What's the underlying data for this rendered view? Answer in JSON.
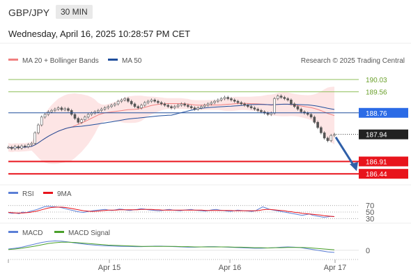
{
  "header": {
    "symbol": "GBP/JPY",
    "timeframe": "30 MIN",
    "datetime": "Wednesday, April 16, 2025 10:28:57 PM CET"
  },
  "legend": {
    "ma20": "MA 20 + Bollinger Bands",
    "ma50": "MA 50",
    "rsi": "RSI",
    "rsi_ma": "9MA",
    "macd": "MACD",
    "macd_signal": "MACD Signal",
    "credit": "Research © 2025 Trading Central"
  },
  "colors": {
    "ma20": "#f08080",
    "ma50": "#1f4e9c",
    "bollinger_fill": "#fde2e2",
    "resistance": "#8fbf5a",
    "resistance_text": "#6aa02b",
    "pivot": "#1f4e9c",
    "pivot_label": "#2b6be6",
    "support": "#e8141c",
    "price_label": "#222222",
    "arrow": "#2f5fa8",
    "rsi": "#5b7fd6",
    "rsi_ma": "#e8141c",
    "macd": "#5b7fd6",
    "macd_signal": "#4aa02b"
  },
  "chart_data": [
    {
      "type": "candlestick",
      "panel": "price",
      "ylim": [
        186.1,
        190.4
      ],
      "x_axis_labels": [
        "Apr 15",
        "Apr 16",
        "Apr 17"
      ],
      "levels": [
        {
          "name": "resistance-2",
          "value": 190.03,
          "label": "190.03",
          "style": "resistance"
        },
        {
          "name": "resistance-1",
          "value": 189.56,
          "label": "189.56",
          "style": "resistance"
        },
        {
          "name": "pivot",
          "value": 188.76,
          "label": "188.76",
          "style": "pivot"
        },
        {
          "name": "last-price",
          "value": 187.94,
          "label": "187.94",
          "style": "price"
        },
        {
          "name": "support-1",
          "value": 186.91,
          "label": "186.91",
          "style": "support"
        },
        {
          "name": "support-2",
          "value": 186.44,
          "label": "186.44",
          "style": "support"
        }
      ],
      "close": [
        187.45,
        187.4,
        187.48,
        187.42,
        187.5,
        187.47,
        187.55,
        187.6,
        188.0,
        188.3,
        188.6,
        188.7,
        188.8,
        188.85,
        188.9,
        188.95,
        188.88,
        188.92,
        188.85,
        188.7,
        188.55,
        188.4,
        188.5,
        188.6,
        188.7,
        188.75,
        188.8,
        188.85,
        188.9,
        188.95,
        189.0,
        189.05,
        189.1,
        189.2,
        189.25,
        189.3,
        189.2,
        189.1,
        189.0,
        188.95,
        189.05,
        189.15,
        189.2,
        189.25,
        189.2,
        189.15,
        189.1,
        189.05,
        189.0,
        188.95,
        189.0,
        189.05,
        189.1,
        189.05,
        189.0,
        188.95,
        188.9,
        188.95,
        189.0,
        189.05,
        189.1,
        189.15,
        189.2,
        189.25,
        189.3,
        189.35,
        189.3,
        189.25,
        189.2,
        189.15,
        189.1,
        189.05,
        189.0,
        188.95,
        188.9,
        188.85,
        188.8,
        188.75,
        188.7,
        188.75,
        189.3,
        189.4,
        189.35,
        189.3,
        189.25,
        189.1,
        189.0,
        188.9,
        188.8,
        188.75,
        188.7,
        188.6,
        188.4,
        188.2,
        188.0,
        187.8,
        187.7,
        187.9,
        187.94
      ]
    },
    {
      "type": "line",
      "panel": "rsi",
      "ylim": [
        20,
        80
      ],
      "ticks": [
        70,
        50,
        30
      ],
      "series": [
        {
          "name": "RSI",
          "values": [
            48,
            46,
            47,
            45,
            50,
            48,
            52,
            55,
            58,
            62,
            66,
            68,
            67,
            66,
            65,
            63,
            60,
            57,
            55,
            52,
            50,
            49,
            51,
            53,
            55,
            56,
            57,
            58,
            56,
            55,
            57,
            59,
            58,
            56,
            55,
            57,
            58,
            60,
            59,
            57,
            56,
            55,
            54,
            55,
            57,
            58,
            56,
            55,
            54,
            56,
            57,
            58,
            56,
            55,
            54,
            53,
            55,
            57,
            58,
            56,
            55,
            53,
            52,
            54,
            56,
            55,
            54,
            53,
            52,
            54,
            60,
            66,
            62,
            58,
            56,
            54,
            52,
            50,
            48,
            46,
            44,
            42,
            40,
            42,
            44,
            40,
            38,
            36,
            34,
            35,
            37,
            36
          ]
        },
        {
          "name": "9MA",
          "values": [
            49,
            48,
            47,
            47,
            47,
            48,
            49,
            51,
            53,
            56,
            59,
            62,
            64,
            65,
            65,
            65,
            64,
            62,
            60,
            58,
            56,
            54,
            53,
            52,
            52,
            53,
            54,
            55,
            56,
            56,
            56,
            57,
            57,
            57,
            57,
            57,
            57,
            58,
            58,
            58,
            58,
            57,
            57,
            56,
            56,
            56,
            56,
            56,
            56,
            56,
            56,
            56,
            56,
            56,
            56,
            55,
            55,
            55,
            55,
            55,
            55,
            55,
            55,
            54,
            54,
            54,
            54,
            54,
            54,
            54,
            55,
            57,
            58,
            58,
            57,
            56,
            55,
            54,
            52,
            51,
            49,
            48,
            46,
            45,
            44,
            43,
            42,
            41,
            39,
            38,
            37,
            36
          ]
        }
      ]
    },
    {
      "type": "line",
      "panel": "macd",
      "ylim": [
        -0.35,
        0.45
      ],
      "ticks": [
        0
      ],
      "series": [
        {
          "name": "MACD",
          "values": [
            0.05,
            0.08,
            0.12,
            0.18,
            0.24,
            0.3,
            0.34,
            0.36,
            0.35,
            0.32,
            0.28,
            0.25,
            0.22,
            0.2,
            0.18,
            0.17,
            0.16,
            0.15,
            0.15,
            0.14,
            0.14,
            0.15,
            0.16,
            0.16,
            0.15,
            0.14,
            0.13,
            0.12,
            0.12,
            0.13,
            0.14,
            0.14,
            0.13,
            0.12,
            0.11,
            0.1,
            0.09,
            0.08,
            0.08,
            0.09,
            0.1,
            0.12,
            0.13,
            0.12,
            0.1,
            0.06,
            0.02,
            -0.02,
            -0.06,
            -0.08
          ]
        },
        {
          "name": "MACD Signal",
          "values": [
            0.03,
            0.05,
            0.08,
            0.12,
            0.16,
            0.21,
            0.26,
            0.29,
            0.31,
            0.31,
            0.3,
            0.28,
            0.26,
            0.24,
            0.22,
            0.2,
            0.19,
            0.18,
            0.17,
            0.16,
            0.15,
            0.15,
            0.15,
            0.15,
            0.15,
            0.15,
            0.14,
            0.14,
            0.13,
            0.13,
            0.13,
            0.13,
            0.13,
            0.13,
            0.12,
            0.12,
            0.11,
            0.1,
            0.1,
            0.09,
            0.1,
            0.1,
            0.11,
            0.11,
            0.11,
            0.1,
            0.08,
            0.06,
            0.04,
            0.02
          ]
        }
      ]
    }
  ]
}
